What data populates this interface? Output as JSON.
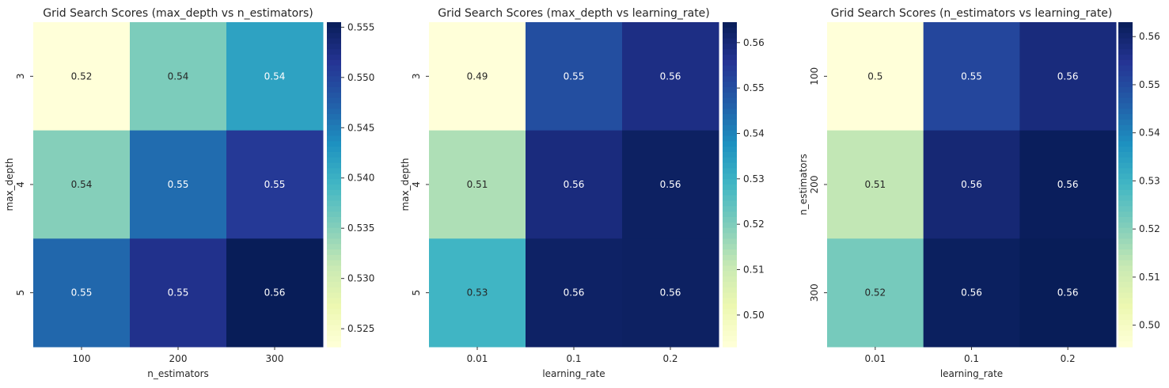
{
  "chart_data": [
    {
      "type": "heatmap",
      "title": "Grid Search Scores (max_depth vs n_estimators)",
      "xlabel": "n_estimators",
      "ylabel": "max_depth",
      "x_categories": [
        "100",
        "200",
        "300"
      ],
      "y_categories": [
        "3",
        "4",
        "5"
      ],
      "values": [
        [
          0.5232,
          0.5355,
          0.5415
        ],
        [
          0.535,
          0.5463,
          0.551
        ],
        [
          0.5467,
          0.552,
          0.5555
        ]
      ],
      "annotations": [
        [
          "0.52",
          "0.54",
          "0.54"
        ],
        [
          "0.54",
          "0.55",
          "0.55"
        ],
        [
          "0.55",
          "0.55",
          "0.56"
        ]
      ],
      "colorbar": {
        "range": [
          0.5232,
          0.5555
        ],
        "ticks": [
          "0.525",
          "0.530",
          "0.535",
          "0.540",
          "0.545",
          "0.550",
          "0.555"
        ],
        "tick_values": [
          0.525,
          0.53,
          0.535,
          0.54,
          0.545,
          0.55,
          0.555
        ]
      },
      "colormap": "YlGnBu"
    },
    {
      "type": "heatmap",
      "title": "Grid Search Scores (max_depth vs learning_rate)",
      "xlabel": "learning_rate",
      "ylabel": "max_depth",
      "x_categories": [
        "0.01",
        "0.1",
        "0.2"
      ],
      "y_categories": [
        "3",
        "4",
        "5"
      ],
      "values": [
        [
          0.493,
          0.55,
          0.558
        ],
        [
          0.514,
          0.559,
          0.563
        ],
        [
          0.529,
          0.5625,
          0.563
        ]
      ],
      "annotations": [
        [
          "0.49",
          "0.55",
          "0.56"
        ],
        [
          "0.51",
          "0.56",
          "0.56"
        ],
        [
          "0.53",
          "0.56",
          "0.56"
        ]
      ],
      "colorbar": {
        "range": [
          0.493,
          0.5645
        ],
        "ticks": [
          "0.50",
          "0.51",
          "0.52",
          "0.53",
          "0.54",
          "0.55",
          "0.56"
        ],
        "tick_values": [
          0.5,
          0.51,
          0.52,
          0.53,
          0.54,
          0.55,
          0.56
        ]
      },
      "colormap": "YlGnBu"
    },
    {
      "type": "heatmap",
      "title": "Grid Search Scores (n_estimators vs learning_rate)",
      "xlabel": "learning_rate",
      "ylabel": "n_estimators",
      "x_categories": [
        "0.01",
        "0.1",
        "0.2"
      ],
      "y_categories": [
        "100",
        "200",
        "300"
      ],
      "values": [
        [
          0.4955,
          0.551,
          0.558
        ],
        [
          0.513,
          0.559,
          0.5625
        ],
        [
          0.522,
          0.562,
          0.563
        ]
      ],
      "annotations": [
        [
          "0.5",
          "0.55",
          "0.56"
        ],
        [
          "0.51",
          "0.56",
          "0.56"
        ],
        [
          "0.52",
          "0.56",
          "0.56"
        ]
      ],
      "colorbar": {
        "range": [
          0.4955,
          0.563
        ],
        "ticks": [
          "0.50",
          "0.51",
          "0.52",
          "0.53",
          "0.54",
          "0.55",
          "0.56"
        ],
        "tick_values": [
          0.5,
          0.51,
          0.52,
          0.53,
          0.54,
          0.55,
          0.56
        ]
      },
      "colormap": "YlGnBu"
    }
  ]
}
